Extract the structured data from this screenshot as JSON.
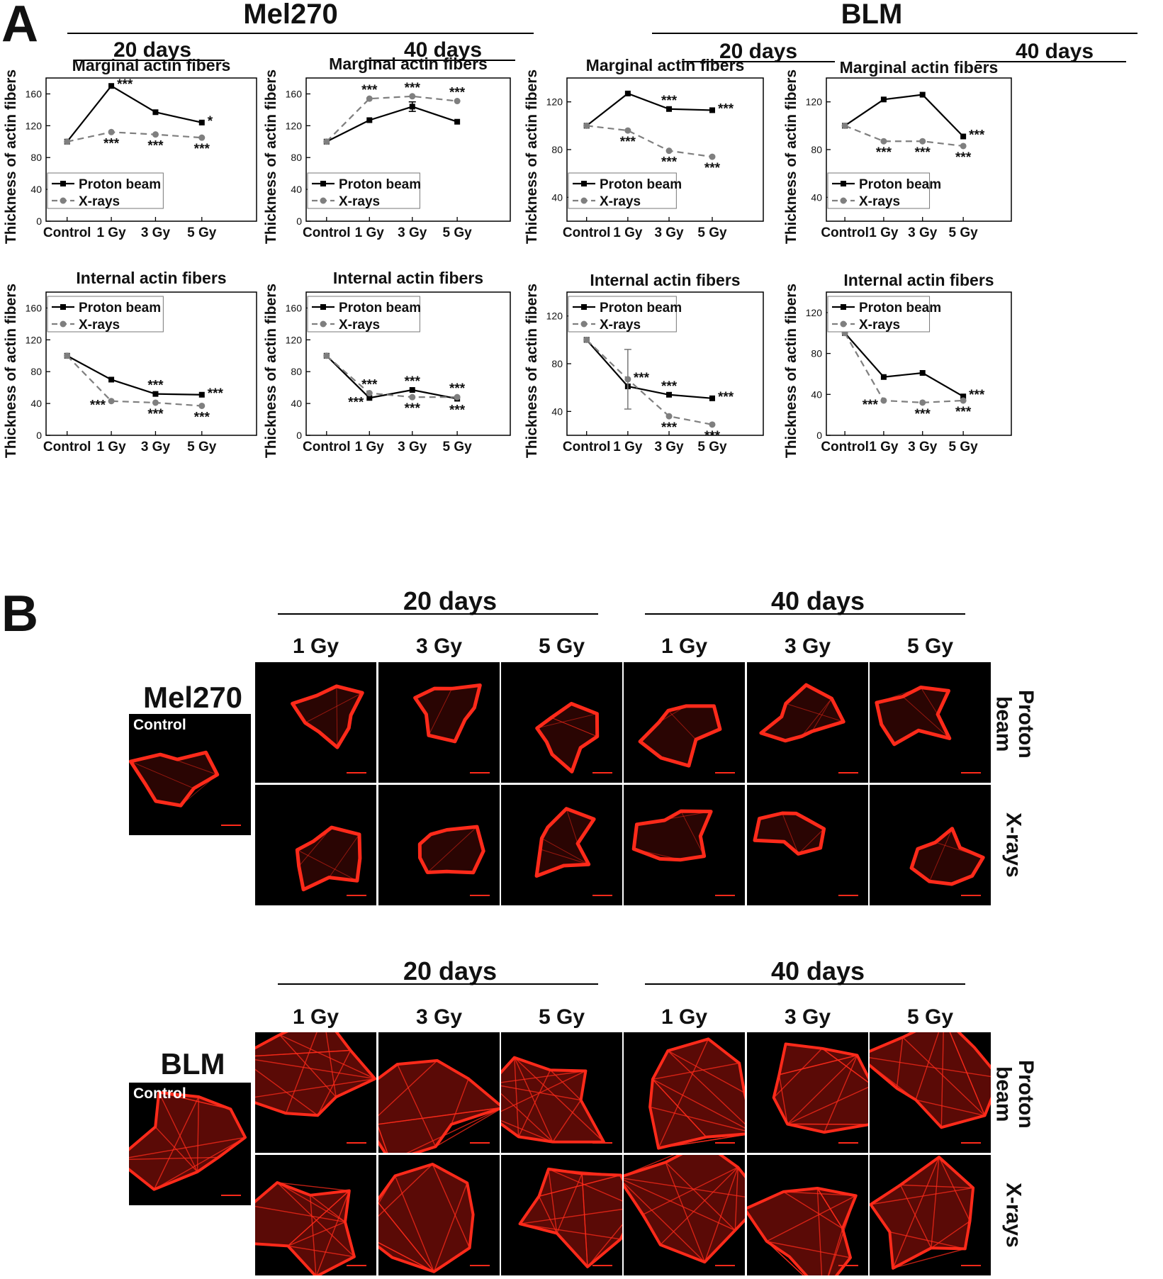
{
  "panel_a": {
    "letter": "A",
    "groups": [
      {
        "title": "Mel270",
        "durations": [
          "20 days",
          "40 days"
        ]
      },
      {
        "title": "BLM",
        "durations": [
          "20 days",
          "40 days"
        ]
      }
    ]
  },
  "panel_b": {
    "letter": "B",
    "blocks": [
      {
        "cell_line": "Mel270",
        "control_label": "Control",
        "durations": [
          "20 days",
          "40 days"
        ],
        "doses": [
          "1 Gy",
          "3 Gy",
          "5 Gy",
          "1 Gy",
          "3 Gy",
          "5 Gy"
        ],
        "row_labels": [
          "Proton beam",
          "X-rays"
        ]
      },
      {
        "cell_line": "BLM",
        "control_label": "Control",
        "durations": [
          "20 days",
          "40 days"
        ],
        "doses": [
          "1 Gy",
          "3 Gy",
          "5 Gy",
          "1 Gy",
          "3 Gy",
          "5 Gy"
        ],
        "row_labels": [
          "Proton beam",
          "X-rays"
        ]
      }
    ]
  },
  "colors": {
    "proton": "#000000",
    "xray": "#7f7f7f",
    "stain": "#ff2a1a"
  },
  "chart_data": [
    {
      "type": "line",
      "title": "Marginal actin fibers",
      "ylabel": "Thickness of actin fibers",
      "xlabel": "",
      "categories": [
        "Control",
        "1 Gy",
        "3 Gy",
        "5 Gy"
      ],
      "ylim": [
        0,
        180
      ],
      "yticks": [
        0,
        40,
        80,
        120,
        160
      ],
      "legend": "top-left-lower",
      "series": [
        {
          "name": "Proton beam",
          "values": [
            100,
            170,
            137,
            124
          ],
          "style": "solid"
        },
        {
          "name": "X-rays",
          "values": [
            100,
            112,
            109,
            105
          ],
          "style": "dashed"
        }
      ],
      "annotations": [
        {
          "series": 0,
          "index": 1,
          "text": "***",
          "pos": "right"
        },
        {
          "series": 0,
          "index": 3,
          "text": "*",
          "pos": "right"
        },
        {
          "series": 1,
          "index": 1,
          "text": "***",
          "pos": "below"
        },
        {
          "series": 1,
          "index": 2,
          "text": "***",
          "pos": "below"
        },
        {
          "series": 1,
          "index": 3,
          "text": "***",
          "pos": "below"
        }
      ]
    },
    {
      "type": "line",
      "title": "Marginal actin fibers",
      "ylabel": "Thickness of actin fibers",
      "xlabel": "",
      "categories": [
        "Control",
        "1 Gy",
        "3 Gy",
        "5 Gy"
      ],
      "ylim": [
        0,
        180
      ],
      "yticks": [
        0,
        40,
        80,
        120,
        160
      ],
      "legend": "bottom-left",
      "series": [
        {
          "name": "Proton beam",
          "values": [
            100,
            127,
            144,
            125
          ],
          "style": "solid",
          "errors": [
            0,
            0,
            6,
            0
          ]
        },
        {
          "name": "X-rays",
          "values": [
            100,
            154,
            157,
            151
          ],
          "style": "dashed"
        }
      ],
      "annotations": [
        {
          "series": 1,
          "index": 1,
          "text": "***",
          "pos": "above"
        },
        {
          "series": 1,
          "index": 2,
          "text": "***",
          "pos": "above"
        },
        {
          "series": 1,
          "index": 3,
          "text": "***",
          "pos": "above"
        }
      ]
    },
    {
      "type": "line",
      "title": "Marginal actin fibers",
      "ylabel": "Thickness of actin fibers",
      "xlabel": "",
      "categories": [
        "Control",
        "1 Gy",
        "3 Gy",
        "5 Gy"
      ],
      "ylim": [
        20,
        140
      ],
      "yticks": [
        40,
        80,
        120
      ],
      "legend": "bottom-left",
      "series": [
        {
          "name": "Proton beam",
          "values": [
            100,
            127,
            114,
            113
          ],
          "style": "solid"
        },
        {
          "name": "X-rays",
          "values": [
            100,
            96,
            79,
            74
          ],
          "style": "dashed"
        }
      ],
      "annotations": [
        {
          "series": 0,
          "index": 2,
          "text": "***",
          "pos": "above"
        },
        {
          "series": 0,
          "index": 3,
          "text": "***",
          "pos": "right"
        },
        {
          "series": 1,
          "index": 1,
          "text": "***",
          "pos": "below"
        },
        {
          "series": 1,
          "index": 2,
          "text": "***",
          "pos": "below"
        },
        {
          "series": 1,
          "index": 3,
          "text": "***",
          "pos": "below"
        }
      ]
    },
    {
      "type": "line",
      "title": "Marginal actin fibers",
      "ylabel": "Thickness of actin fibers",
      "xlabel": "",
      "categories": [
        "Control",
        "1 Gy",
        "3 Gy",
        "5 Gy"
      ],
      "ylim": [
        20,
        140
      ],
      "yticks": [
        40,
        80,
        120
      ],
      "legend": "bottom-left",
      "series": [
        {
          "name": "Proton beam",
          "values": [
            100,
            122,
            126,
            91
          ],
          "style": "solid"
        },
        {
          "name": "X-rays",
          "values": [
            100,
            87,
            87,
            83
          ],
          "style": "dashed"
        }
      ],
      "annotations": [
        {
          "series": 0,
          "index": 3,
          "text": "***",
          "pos": "right"
        },
        {
          "series": 1,
          "index": 1,
          "text": "***",
          "pos": "below"
        },
        {
          "series": 1,
          "index": 2,
          "text": "***",
          "pos": "below"
        },
        {
          "series": 1,
          "index": 3,
          "text": "***",
          "pos": "below"
        }
      ]
    },
    {
      "type": "line",
      "title": "Internal actin fibers",
      "ylabel": "Thickness of actin fibers",
      "xlabel": "",
      "categories": [
        "Control",
        "1 Gy",
        "3 Gy",
        "5 Gy"
      ],
      "ylim": [
        0,
        180
      ],
      "yticks": [
        0,
        40,
        80,
        120,
        160
      ],
      "legend": "top-left",
      "series": [
        {
          "name": "Proton beam",
          "values": [
            100,
            70,
            52,
            51
          ],
          "style": "solid"
        },
        {
          "name": "X-rays",
          "values": [
            100,
            43,
            41,
            37
          ],
          "style": "dashed"
        }
      ],
      "annotations": [
        {
          "series": 0,
          "index": 2,
          "text": "***",
          "pos": "above"
        },
        {
          "series": 0,
          "index": 3,
          "text": "***",
          "pos": "right"
        },
        {
          "series": 1,
          "index": 1,
          "text": "***",
          "pos": "left"
        },
        {
          "series": 1,
          "index": 2,
          "text": "***",
          "pos": "below"
        },
        {
          "series": 1,
          "index": 3,
          "text": "***",
          "pos": "below"
        }
      ]
    },
    {
      "type": "line",
      "title": "Internal actin fibers",
      "ylabel": "Thickness of actin fibers",
      "xlabel": "",
      "categories": [
        "Control",
        "1 Gy",
        "3 Gy",
        "5 Gy"
      ],
      "ylim": [
        0,
        180
      ],
      "yticks": [
        0,
        40,
        80,
        120,
        160
      ],
      "legend": "top-left",
      "series": [
        {
          "name": "Proton beam",
          "values": [
            100,
            47,
            57,
            46
          ],
          "style": "solid"
        },
        {
          "name": "X-rays",
          "values": [
            100,
            53,
            48,
            48
          ],
          "style": "dashed"
        }
      ],
      "annotations": [
        {
          "series": 0,
          "index": 1,
          "text": "***",
          "pos": "left"
        },
        {
          "series": 0,
          "index": 2,
          "text": "***",
          "pos": "above"
        },
        {
          "series": 1,
          "index": 1,
          "text": "***",
          "pos": "above"
        },
        {
          "series": 1,
          "index": 2,
          "text": "***",
          "pos": "below"
        },
        {
          "series": 1,
          "index": 3,
          "text": "***",
          "pos": "above"
        },
        {
          "series": 0,
          "index": 3,
          "text": "***",
          "pos": "below"
        }
      ]
    },
    {
      "type": "line",
      "title": "Internal actin fibers",
      "ylabel": "Thickness of actin fibers",
      "xlabel": "",
      "categories": [
        "Control",
        "1 Gy",
        "3 Gy",
        "5 Gy"
      ],
      "ylim": [
        20,
        140
      ],
      "yticks": [
        40,
        80,
        120
      ],
      "legend": "top-left",
      "series": [
        {
          "name": "Proton beam",
          "values": [
            100,
            61,
            54,
            51
          ],
          "style": "solid"
        },
        {
          "name": "X-rays",
          "values": [
            100,
            67,
            36,
            29
          ],
          "style": "dashed",
          "errors": [
            0,
            25,
            0,
            0
          ]
        }
      ],
      "annotations": [
        {
          "series": 1,
          "index": 1,
          "text": "***",
          "pos": "right"
        },
        {
          "series": 0,
          "index": 2,
          "text": "***",
          "pos": "above"
        },
        {
          "series": 0,
          "index": 3,
          "text": "***",
          "pos": "right"
        },
        {
          "series": 1,
          "index": 2,
          "text": "***",
          "pos": "below"
        },
        {
          "series": 1,
          "index": 3,
          "text": "***",
          "pos": "below"
        }
      ]
    },
    {
      "type": "line",
      "title": "Internal actin fibers",
      "ylabel": "Thickness of actin fibers",
      "xlabel": "",
      "categories": [
        "Control",
        "1 Gy",
        "3 Gy",
        "5 Gy"
      ],
      "ylim": [
        0,
        140
      ],
      "yticks": [
        0,
        40,
        80,
        120
      ],
      "legend": "top-left",
      "series": [
        {
          "name": "Proton beam",
          "values": [
            100,
            57,
            61,
            38
          ],
          "style": "solid"
        },
        {
          "name": "X-rays",
          "values": [
            100,
            34,
            32,
            34
          ],
          "style": "dashed"
        }
      ],
      "annotations": [
        {
          "series": 0,
          "index": 3,
          "text": "***",
          "pos": "right"
        },
        {
          "series": 1,
          "index": 1,
          "text": "***",
          "pos": "left"
        },
        {
          "series": 1,
          "index": 2,
          "text": "***",
          "pos": "below"
        },
        {
          "series": 1,
          "index": 3,
          "text": "***",
          "pos": "below"
        }
      ]
    }
  ]
}
